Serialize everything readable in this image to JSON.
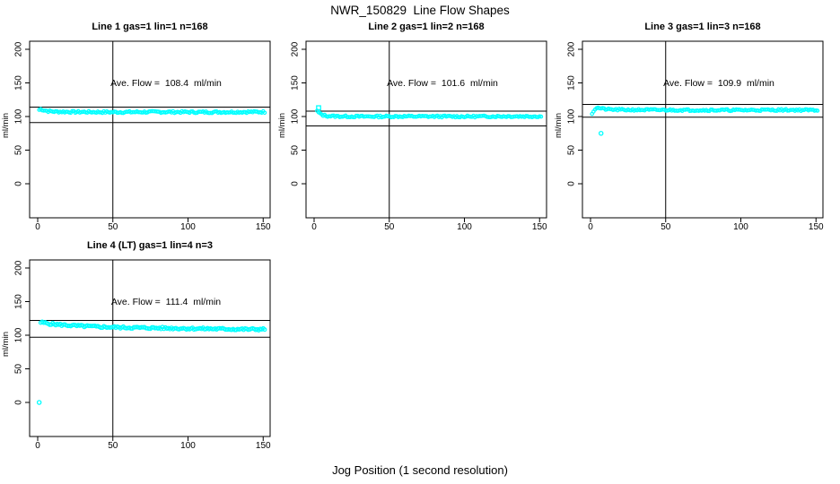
{
  "chart_data": {
    "type": "scatter",
    "title": "NWR_150829  Line Flow Shapes",
    "x_axis_label": "Jog Position (1 second resolution)",
    "y_axis_label": "ml/min",
    "y_ticks": [
      0,
      50,
      100,
      150,
      200
    ],
    "x_ticks": [
      0,
      50,
      100,
      150
    ],
    "ylim": [
      0,
      200
    ],
    "xlim": [
      0,
      150
    ],
    "vline_x": 50,
    "marker": "open-circle",
    "marker_color": "#00FFFF",
    "axis_color": "#000000",
    "legend": "none",
    "grid": "off",
    "panels": [
      {
        "title": "Line 1 gas=1 lin=1 n=168",
        "annotation": "Ave. Flow =  108.4  ml/min",
        "ave_flow_ml_min": 108.4,
        "n": 168,
        "ref_upper": 114,
        "ref_lower": 91,
        "x_start": 1,
        "x_end": 151,
        "jitter": 1.4,
        "seed": 7,
        "marker_r": 1.7,
        "profile": [
          [
            1,
            110
          ],
          [
            2,
            111
          ],
          [
            4,
            109.5
          ],
          [
            7,
            108
          ],
          [
            12,
            107.2
          ],
          [
            25,
            106.8
          ],
          [
            50,
            106.5
          ],
          [
            80,
            106.8
          ],
          [
            110,
            106.5
          ],
          [
            140,
            106.8
          ],
          [
            151,
            106.8
          ]
        ],
        "outliers": []
      },
      {
        "title": "Line 2 gas=1 lin=2 n=168",
        "annotation": "Ave. Flow =  101.6  ml/min",
        "ave_flow_ml_min": 101.6,
        "n": 168,
        "ref_upper": 108,
        "ref_lower": 86,
        "x_start": 2,
        "x_end": 151,
        "jitter": 1.3,
        "seed": 13,
        "marker_r": 1.7,
        "profile": [
          [
            2,
            108
          ],
          [
            3,
            106
          ],
          [
            4,
            104
          ],
          [
            6,
            102
          ],
          [
            9,
            100.8
          ],
          [
            15,
            100.3
          ],
          [
            30,
            100
          ],
          [
            60,
            100.2
          ],
          [
            100,
            100
          ],
          [
            130,
            100.3
          ],
          [
            151,
            100.2
          ]
        ],
        "outliers": [
          {
            "x": 3,
            "y": 113,
            "marker": "square"
          }
        ]
      },
      {
        "title": "Line 3 gas=1 lin=3 n=168",
        "annotation": "Ave. Flow =  109.9  ml/min",
        "ave_flow_ml_min": 109.9,
        "n": 168,
        "ref_upper": 118,
        "ref_lower": 99,
        "x_start": 1,
        "x_end": 151,
        "jitter": 1.3,
        "seed": 21,
        "marker_r": 1.7,
        "profile": [
          [
            1,
            105
          ],
          [
            2,
            108
          ],
          [
            3,
            111
          ],
          [
            4,
            113
          ],
          [
            6,
            112.5
          ],
          [
            8,
            111.5
          ],
          [
            12,
            110.5
          ],
          [
            20,
            110
          ],
          [
            40,
            109.8
          ],
          [
            70,
            109.5
          ],
          [
            100,
            109.5
          ],
          [
            130,
            109.8
          ],
          [
            151,
            109.5
          ]
        ],
        "outliers": [
          {
            "x": 7,
            "y": 75,
            "marker": "circle"
          }
        ]
      },
      {
        "title": "Line 4 (LT) gas=1 lin=4 n=3",
        "annotation": "Ave. Flow =  111.4  ml/min",
        "ave_flow_ml_min": 111.4,
        "n": 3,
        "ref_upper": 122,
        "ref_lower": 97,
        "x_start": 2,
        "x_end": 151,
        "jitter": 1.6,
        "seed": 5,
        "marker_r": 1.9,
        "profile": [
          [
            2,
            119
          ],
          [
            4,
            118.5
          ],
          [
            8,
            117
          ],
          [
            15,
            115.5
          ],
          [
            25,
            114
          ],
          [
            40,
            112.5
          ],
          [
            55,
            111.5
          ],
          [
            70,
            111
          ],
          [
            85,
            110.5
          ],
          [
            100,
            110
          ],
          [
            115,
            109.5
          ],
          [
            130,
            109
          ],
          [
            140,
            108.8
          ],
          [
            151,
            108.8
          ]
        ],
        "outliers": [
          {
            "x": 1,
            "y": 0,
            "marker": "circle"
          }
        ]
      }
    ]
  }
}
